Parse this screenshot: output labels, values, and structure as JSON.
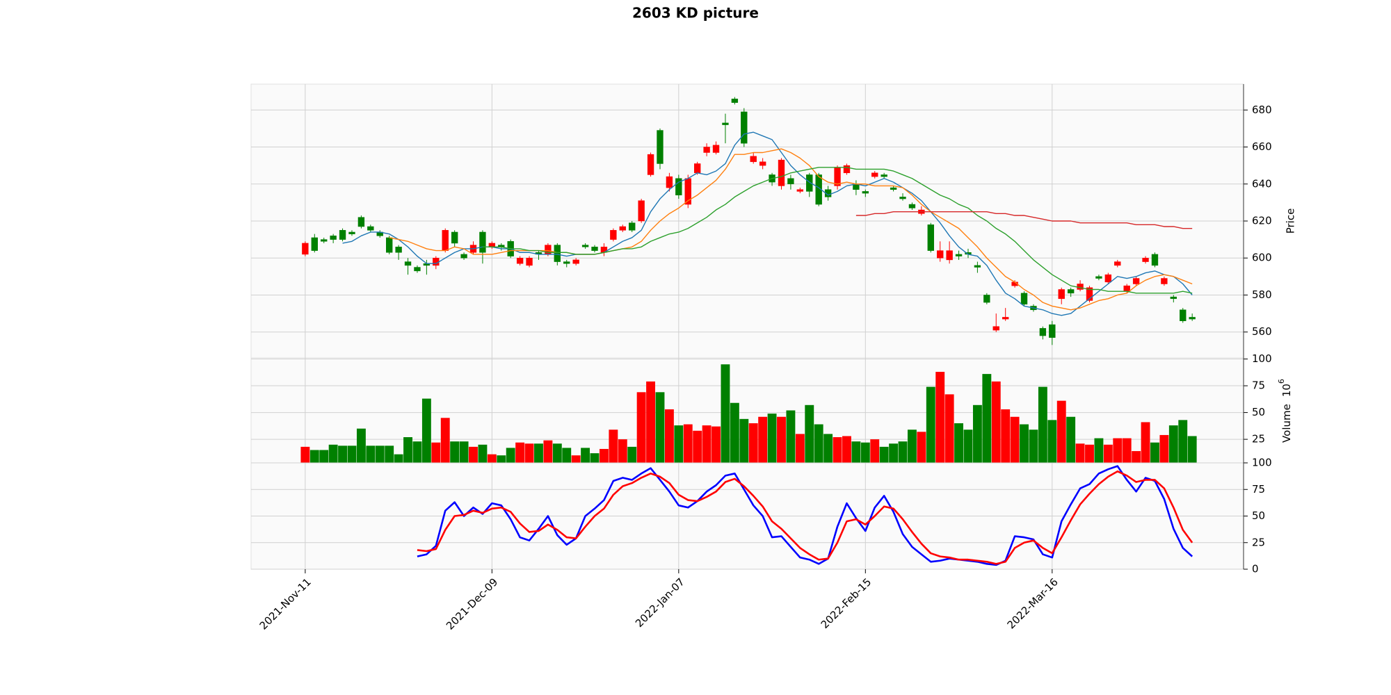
{
  "chart_data": [
    {
      "type": "candlestick",
      "title": "2603 KD picture",
      "ylabel": "Price",
      "up_color": "#ff0000",
      "down_color": "#008000",
      "open": [
        602,
        611,
        610,
        612,
        615,
        614,
        622,
        617,
        614,
        611,
        606,
        598,
        595,
        597,
        596,
        604,
        614,
        602,
        603,
        614,
        606,
        607,
        609,
        597,
        596,
        603,
        602,
        607,
        598,
        597,
        607,
        606,
        603,
        610,
        615,
        619,
        620,
        645,
        669,
        638,
        643,
        629,
        646,
        657,
        657,
        673,
        686,
        679,
        652,
        650,
        645,
        639,
        643,
        636,
        645,
        645,
        637,
        639,
        646,
        640,
        636,
        644,
        645,
        638,
        633,
        629,
        624,
        618,
        600,
        599,
        602,
        603,
        596,
        580,
        561,
        567,
        585,
        581,
        574,
        562,
        564,
        578,
        583,
        583,
        577,
        590,
        587,
        596,
        582,
        586,
        598,
        602,
        586,
        579,
        572,
        568
      ],
      "high": [
        609,
        613,
        611,
        613,
        616,
        615,
        623,
        618,
        615,
        612,
        607,
        600,
        596,
        599,
        601,
        616,
        615,
        603,
        609,
        615,
        609,
        608,
        610,
        601,
        601,
        604,
        608,
        608,
        599,
        600,
        608,
        607,
        608,
        616,
        618,
        620,
        632,
        657,
        670,
        646,
        645,
        645,
        652,
        662,
        663,
        678,
        687,
        681,
        657,
        654,
        646,
        654,
        645,
        638,
        646,
        646,
        639,
        650,
        651,
        642,
        637,
        647,
        646,
        639,
        635,
        630,
        628,
        619,
        609,
        609,
        604,
        605,
        598,
        581,
        570,
        573,
        588,
        582,
        575,
        563,
        566,
        584,
        584,
        588,
        585,
        591,
        592,
        599,
        586,
        590,
        601,
        603,
        590,
        580,
        573,
        570
      ],
      "low": [
        601,
        603,
        608,
        608,
        609,
        612,
        616,
        614,
        611,
        602,
        599,
        591,
        592,
        591,
        594,
        603,
        606,
        599,
        602,
        597,
        605,
        604,
        600,
        596,
        595,
        599,
        601,
        596,
        595,
        596,
        605,
        603,
        601,
        609,
        614,
        614,
        619,
        644,
        648,
        636,
        632,
        627,
        645,
        655,
        656,
        662,
        683,
        660,
        651,
        648,
        639,
        637,
        637,
        635,
        633,
        628,
        631,
        637,
        645,
        634,
        633,
        643,
        643,
        636,
        631,
        626,
        623,
        603,
        598,
        597,
        599,
        600,
        592,
        575,
        560,
        566,
        584,
        574,
        571,
        556,
        553,
        575,
        579,
        582,
        576,
        588,
        586,
        595,
        581,
        585,
        597,
        595,
        585,
        576,
        565,
        566
      ],
      "close": [
        608,
        604,
        609,
        610,
        610,
        613,
        617,
        615,
        612,
        603,
        603,
        596,
        593,
        596,
        600,
        615,
        608,
        600,
        607,
        603,
        608,
        606,
        601,
        600,
        600,
        602,
        607,
        598,
        597,
        599,
        606,
        604,
        606,
        615,
        617,
        615,
        631,
        656,
        651,
        644,
        634,
        643,
        651,
        660,
        661,
        672,
        684,
        662,
        655,
        652,
        641,
        653,
        640,
        637,
        636,
        629,
        633,
        649,
        650,
        637,
        635,
        646,
        644,
        637,
        632,
        627,
        626,
        604,
        604,
        604,
        601,
        602,
        595,
        576,
        563,
        568,
        587,
        575,
        572,
        558,
        557,
        583,
        581,
        586,
        584,
        589,
        591,
        598,
        585,
        589,
        600,
        596,
        589,
        578,
        566,
        567
      ],
      "series": [
        {
          "color": "#1f77b4",
          "values": [
            null,
            null,
            null,
            null,
            608,
            609,
            612,
            614,
            614,
            613,
            610,
            606,
            601,
            597,
            597,
            600,
            603,
            605,
            605,
            606,
            606,
            605,
            605,
            603,
            603,
            602,
            602,
            602,
            601,
            602,
            602,
            602,
            603,
            606,
            609,
            611,
            615,
            625,
            632,
            637,
            641,
            643,
            646,
            645,
            647,
            651,
            661,
            667,
            668,
            666,
            664,
            657,
            650,
            645,
            641,
            638,
            634,
            636,
            639,
            640,
            639,
            641,
            643,
            641,
            638,
            635,
            631,
            625,
            619,
            612,
            606,
            602,
            601,
            596,
            588,
            581,
            578,
            574,
            573,
            572,
            570,
            569,
            570,
            574,
            578,
            582,
            586,
            590,
            589,
            590,
            592,
            593,
            591,
            590,
            586,
            580
          ]
        },
        {
          "color": "#ff7f0e",
          "values": [
            null,
            null,
            null,
            null,
            null,
            null,
            null,
            null,
            null,
            611,
            610,
            609,
            607,
            605,
            604,
            604,
            606,
            605,
            602,
            602,
            602,
            603,
            604,
            604,
            604,
            604,
            604,
            603,
            603,
            602,
            602,
            602,
            603,
            604,
            605,
            606,
            609,
            615,
            620,
            624,
            627,
            631,
            634,
            638,
            642,
            648,
            656,
            656,
            657,
            657,
            658,
            659,
            657,
            654,
            650,
            644,
            641,
            640,
            641,
            640,
            640,
            639,
            639,
            639,
            638,
            634,
            629,
            625,
            622,
            619,
            616,
            611,
            606,
            600,
            595,
            590,
            587,
            583,
            580,
            576,
            574,
            573,
            572,
            573,
            575,
            577,
            578,
            580,
            581,
            585,
            588,
            590,
            591,
            590,
            588,
            586
          ]
        },
        {
          "color": "#2ca02c",
          "values": [
            null,
            null,
            null,
            null,
            null,
            null,
            null,
            null,
            null,
            null,
            null,
            null,
            null,
            null,
            null,
            null,
            null,
            null,
            null,
            606,
            606,
            606,
            605,
            605,
            604,
            604,
            603,
            603,
            603,
            602,
            602,
            602,
            603,
            604,
            605,
            605,
            606,
            609,
            611,
            613,
            614,
            616,
            619,
            622,
            626,
            629,
            633,
            636,
            639,
            641,
            643,
            644,
            646,
            647,
            648,
            649,
            649,
            649,
            649,
            648,
            648,
            648,
            648,
            647,
            645,
            643,
            640,
            637,
            634,
            632,
            629,
            627,
            623,
            620,
            616,
            613,
            609,
            604,
            599,
            595,
            591,
            588,
            585,
            584,
            583,
            583,
            582,
            582,
            582,
            581,
            581,
            581,
            581,
            581,
            582,
            581
          ]
        },
        {
          "color": "#d62728",
          "values": [
            null,
            null,
            null,
            null,
            null,
            null,
            null,
            null,
            null,
            null,
            null,
            null,
            null,
            null,
            null,
            null,
            null,
            null,
            null,
            null,
            null,
            null,
            null,
            null,
            null,
            null,
            null,
            null,
            null,
            null,
            null,
            null,
            null,
            null,
            null,
            null,
            null,
            null,
            null,
            null,
            null,
            null,
            null,
            null,
            null,
            null,
            null,
            null,
            null,
            null,
            null,
            null,
            null,
            null,
            null,
            null,
            null,
            null,
            null,
            623,
            623,
            624,
            624,
            625,
            625,
            625,
            625,
            625,
            625,
            625,
            625,
            625,
            625,
            625,
            624,
            624,
            623,
            623,
            622,
            621,
            620,
            620,
            620,
            619,
            619,
            619,
            619,
            619,
            619,
            618,
            618,
            618,
            617,
            617,
            616,
            616
          ]
        }
      ],
      "xlim": [
        -5.8,
        100.5
      ],
      "ylim": [
        546,
        694
      ],
      "yticks": [
        560,
        580,
        600,
        620,
        640,
        660,
        680
      ],
      "grid": true
    },
    {
      "type": "bar",
      "ylabel": "Volume",
      "yunit_base": "10",
      "yunit_exponent": "6",
      "values": [
        18,
        15,
        15,
        20,
        19,
        19,
        35,
        19,
        19,
        19,
        11,
        27,
        23,
        63,
        22,
        45,
        23,
        23,
        18,
        20,
        11,
        10,
        17,
        22,
        21,
        21,
        24,
        21,
        17,
        10,
        17,
        12,
        16,
        34,
        25,
        18,
        69,
        79,
        69,
        53,
        38,
        39,
        33,
        38,
        37,
        95,
        59,
        44,
        40,
        46,
        49,
        46,
        52,
        30,
        57,
        39,
        30,
        27,
        28,
        23,
        22,
        25,
        18,
        21,
        23,
        34,
        32,
        74,
        88,
        67,
        40,
        34,
        57,
        86,
        79,
        53,
        46,
        39,
        34,
        74,
        43,
        61,
        46,
        21,
        20,
        26,
        20,
        26,
        26,
        14,
        41,
        22,
        29,
        38,
        43,
        28
      ],
      "xlim": [
        -5.8,
        100.5
      ],
      "ylim": [
        3,
        101
      ],
      "yticks": [
        25,
        50,
        75,
        100
      ],
      "grid": true
    },
    {
      "type": "line",
      "series": [
        {
          "color": "#0000ff",
          "values": [
            null,
            null,
            null,
            null,
            null,
            null,
            null,
            null,
            null,
            null,
            null,
            null,
            12,
            14,
            22,
            55,
            63,
            50,
            58,
            52,
            62,
            60,
            47,
            30,
            27,
            38,
            50,
            32,
            23,
            29,
            50,
            57,
            65,
            83,
            86,
            84,
            90,
            95,
            84,
            73,
            60,
            58,
            64,
            73,
            79,
            88,
            90,
            75,
            60,
            50,
            30,
            31,
            21,
            11,
            9,
            5,
            10,
            40,
            62,
            48,
            36,
            58,
            69,
            54,
            33,
            21,
            14,
            7,
            8,
            10,
            9,
            8,
            7,
            5,
            4,
            8,
            31,
            30,
            28,
            14,
            11,
            45,
            61,
            76,
            80,
            90,
            94,
            97,
            84,
            73,
            86,
            83,
            66,
            38,
            20,
            12
          ]
        },
        {
          "color": "#ff0000",
          "values": [
            null,
            null,
            null,
            null,
            null,
            null,
            null,
            null,
            null,
            null,
            null,
            null,
            18,
            17,
            19,
            37,
            50,
            51,
            55,
            53,
            57,
            58,
            54,
            43,
            35,
            36,
            42,
            37,
            30,
            29,
            40,
            50,
            57,
            70,
            78,
            81,
            86,
            90,
            87,
            81,
            70,
            65,
            64,
            68,
            73,
            82,
            85,
            78,
            69,
            59,
            45,
            38,
            29,
            20,
            14,
            9,
            10,
            25,
            45,
            47,
            42,
            50,
            59,
            57,
            47,
            35,
            24,
            15,
            12,
            11,
            9,
            9,
            8,
            7,
            5,
            7,
            20,
            25,
            27,
            20,
            15,
            30,
            46,
            61,
            71,
            80,
            87,
            92,
            88,
            82,
            84,
            84,
            76,
            58,
            37,
            25
          ]
        }
      ],
      "xlim": [
        -5.8,
        100.5
      ],
      "ylim": [
        0,
        100
      ],
      "yticks": [
        0,
        25,
        50,
        75,
        100
      ],
      "xticks": [
        {
          "value": 0,
          "label": "2021-Nov-11"
        },
        {
          "value": 20,
          "label": "2021-Dec-09"
        },
        {
          "value": 40,
          "label": "2022-Jan-07"
        },
        {
          "value": 60,
          "label": "2022-Feb-15"
        },
        {
          "value": 80,
          "label": "2022-Mar-16"
        }
      ],
      "grid": true
    }
  ]
}
